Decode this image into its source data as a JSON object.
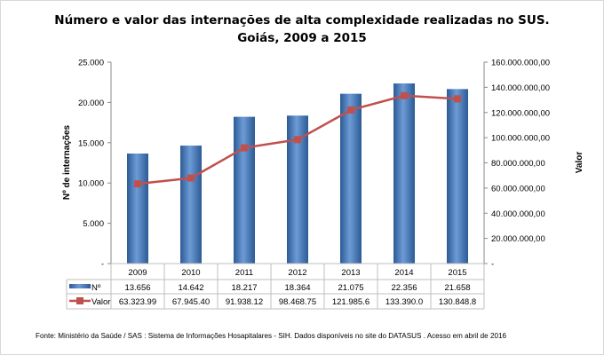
{
  "chart_data": {
    "type": "bar+line",
    "title_line1": "Número e valor das internações de alta complexidade realizadas no SUS.",
    "title_line2": "Goiás, 2009 a 2015",
    "ylabel_left": "Nº de internações",
    "ylabel_right": "Valor",
    "ylim_left": [
      0,
      25000
    ],
    "ylim_right": [
      0,
      160000000
    ],
    "left_ticks": [
      "-",
      "5.000",
      "10.000",
      "15.000",
      "20.000",
      "25.000"
    ],
    "right_ticks": [
      "-",
      "20.000.000,00",
      "40.000.000,00",
      "60.000.000,00",
      "80.000.000,00",
      "100.000.000,00",
      "120.000.000,00",
      "140.000.000,00",
      "160.000.000,00"
    ],
    "categories": [
      "2009",
      "2010",
      "2011",
      "2012",
      "2013",
      "2014",
      "2015"
    ],
    "grid": false,
    "legend_placement": "data-table",
    "series": [
      {
        "name": "Nº",
        "type": "bar",
        "axis": "left",
        "color": "#4F81BD",
        "values": [
          13656,
          14642,
          18217,
          18364,
          21075,
          22356,
          21658
        ],
        "labels": [
          "13.656",
          "14.642",
          "18.217",
          "18.364",
          "21.075",
          "22.356",
          "21.658"
        ]
      },
      {
        "name": "Valor",
        "type": "line",
        "axis": "right",
        "color": "#C0504D",
        "values": [
          63323990,
          67945400,
          91938120,
          98468750,
          121985600,
          133390000,
          130848800
        ],
        "labels": [
          "63.323.99",
          "67.945.40",
          "91.938.12",
          "98.468.75",
          "121.985.6",
          "133.390.0",
          "130.848.8"
        ]
      }
    ],
    "source": "Fonte:  Ministério da Saúde / SAS : Sistema de Informações Hosapitalares - SIH. Dados disponíveis no site do DATASUS . Acesso em abril de 2016"
  }
}
